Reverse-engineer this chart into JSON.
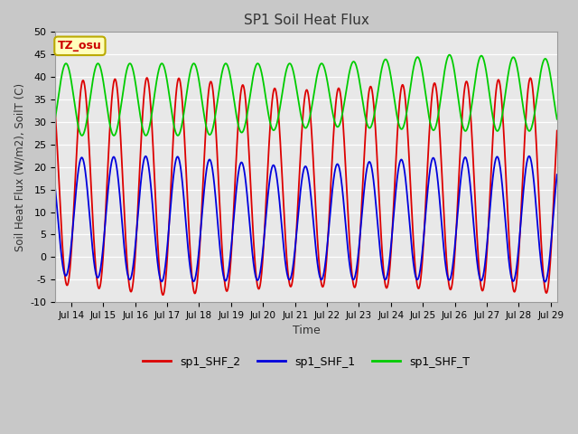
{
  "title": "SP1 Soil Heat Flux",
  "xlabel": "Time",
  "ylabel": "Soil Heat Flux (W/m2), SoilT (C)",
  "ylim": [
    -10,
    50
  ],
  "xlim_start": 13.5,
  "xlim_end": 29.2,
  "xtick_positions": [
    14,
    15,
    16,
    17,
    18,
    19,
    20,
    21,
    22,
    23,
    24,
    25,
    26,
    27,
    28,
    29
  ],
  "xtick_labels": [
    "Jul 14",
    "Jul 15",
    "Jul 16",
    "Jul 17",
    "Jul 18",
    "Jul 19",
    "Jul 20",
    "Jul 21",
    "Jul 22",
    "Jul 23",
    "Jul 24",
    "Jul 25",
    "Jul 26",
    "Jul 27",
    "Jul 28",
    "Jul 29"
  ],
  "ytick_positions": [
    -10,
    -5,
    0,
    5,
    10,
    15,
    20,
    25,
    30,
    35,
    40,
    45,
    50
  ],
  "fig_bg_color": "#c8c8c8",
  "plot_bg_color": "#e8e8e8",
  "grid_color": "#ffffff",
  "color_shf2": "#dd0000",
  "color_shf1": "#0000dd",
  "color_shfT": "#00cc00",
  "line_width": 1.3,
  "legend_items": [
    "sp1_SHF_2",
    "sp1_SHF_1",
    "sp1_SHF_T"
  ],
  "tz_label": "TZ_osu",
  "tz_box_color": "#ffffbb",
  "tz_border_color": "#bbaa00"
}
